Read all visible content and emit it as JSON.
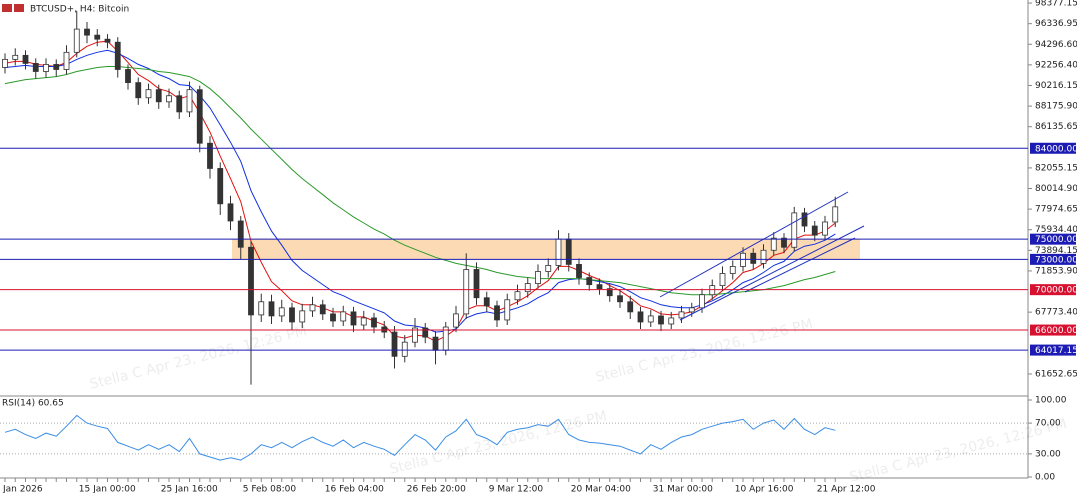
{
  "chart_data": [
    {
      "type": "candlestick",
      "title": "BTCUSD+, H4: Bitcoin",
      "watermark": "Stella C Apr 23, 2026, 12:26 PM",
      "categories": [
        "Jan 2026",
        null,
        null,
        null,
        null,
        null,
        null,
        "15 Jan 00:00",
        null,
        null,
        null,
        null,
        null,
        null,
        null,
        "25 Jan 16:00",
        null,
        null,
        null,
        null,
        null,
        null,
        null,
        "5 Feb 08:00",
        null,
        null,
        null,
        null,
        null,
        null,
        null,
        "16 Feb 04:00",
        null,
        null,
        null,
        null,
        null,
        null,
        null,
        "26 Feb 20:00",
        null,
        null,
        null,
        null,
        null,
        null,
        null,
        "9 Mar 12:00",
        null,
        null,
        null,
        null,
        null,
        null,
        null,
        "20 Mar 04:00",
        null,
        null,
        null,
        null,
        null,
        null,
        null,
        "31 Mar 00:00",
        null,
        null,
        null,
        null,
        null,
        null,
        null,
        "10 Apr 16:00",
        null,
        null,
        null,
        null,
        null,
        null,
        null,
        "21 Apr 12:00",
        null,
        null
      ],
      "open": [
        92000,
        92800,
        93200,
        92400,
        91600,
        92300,
        91800,
        93500,
        95800,
        95200,
        94800,
        94500,
        91800,
        90500,
        89000,
        89800,
        88600,
        89200,
        87600,
        89800,
        84500,
        82000,
        78500,
        76800,
        74200,
        67500,
        68800,
        67400,
        68200,
        66800,
        67900,
        68500,
        67600,
        66900,
        67800,
        66500,
        67200,
        66300,
        65800,
        63400,
        64800,
        66200,
        65300,
        64000,
        66300,
        67600,
        72000,
        69200,
        68400,
        67000,
        69000,
        69800,
        70600,
        71800,
        72400,
        75000,
        72500,
        71200,
        70500,
        70100,
        69400,
        68800,
        67800,
        66800,
        67400,
        66600,
        67200,
        67800,
        68200,
        69500,
        70400,
        71600,
        72300,
        73600,
        72600,
        73900,
        75100,
        74200,
        77600,
        76300,
        75400,
        76700
      ],
      "high": [
        93400,
        93900,
        93700,
        92900,
        92900,
        92800,
        94200,
        97600,
        96500,
        95800,
        95300,
        95000,
        92300,
        91000,
        90400,
        90300,
        89900,
        89700,
        90600,
        90200,
        85200,
        82600,
        79300,
        77300,
        74800,
        69600,
        69500,
        69000,
        68700,
        68600,
        69300,
        69000,
        68200,
        68400,
        68300,
        67900,
        67700,
        66900,
        66400,
        65500,
        67200,
        66700,
        65900,
        66800,
        68400,
        73600,
        72700,
        69800,
        68900,
        69600,
        70500,
        71200,
        72500,
        73100,
        75900,
        75600,
        73100,
        71700,
        71100,
        70600,
        70000,
        69400,
        68300,
        68000,
        67900,
        67800,
        68400,
        68700,
        70100,
        71000,
        72300,
        72900,
        74200,
        74100,
        74500,
        75700,
        75600,
        78200,
        78100,
        76800,
        77300,
        79200
      ],
      "low": [
        91400,
        92200,
        91800,
        90900,
        91000,
        91100,
        91300,
        93000,
        94400,
        94100,
        93900,
        91000,
        89800,
        88300,
        88400,
        87900,
        88000,
        86900,
        87100,
        83600,
        81000,
        77400,
        75900,
        73000,
        60600,
        66800,
        66600,
        66800,
        66000,
        66200,
        67300,
        67000,
        66300,
        66400,
        65800,
        66000,
        65700,
        65200,
        62200,
        62800,
        64300,
        64700,
        62600,
        63500,
        65800,
        67100,
        68500,
        67800,
        66300,
        66500,
        68500,
        69200,
        70100,
        71200,
        71900,
        71800,
        70500,
        69900,
        69500,
        68800,
        68200,
        67100,
        66100,
        66300,
        65900,
        66100,
        66700,
        67300,
        67700,
        69000,
        69900,
        71000,
        71800,
        72000,
        72100,
        73400,
        73600,
        73800,
        75700,
        74800,
        74900,
        76200
      ],
      "close": [
        92800,
        93200,
        92400,
        91600,
        92300,
        91800,
        93500,
        95800,
        95200,
        94800,
        94500,
        91800,
        90500,
        89000,
        89800,
        88600,
        89200,
        87600,
        89800,
        84500,
        82000,
        78500,
        76800,
        74200,
        67500,
        68800,
        67400,
        68200,
        66800,
        67900,
        68500,
        67600,
        66900,
        67800,
        66500,
        67200,
        66300,
        65800,
        63400,
        64800,
        66200,
        65300,
        64000,
        66300,
        67600,
        72000,
        69200,
        68400,
        67000,
        69000,
        69800,
        70600,
        71800,
        72400,
        75000,
        72500,
        71200,
        70500,
        70100,
        69400,
        68800,
        67800,
        66800,
        67400,
        66600,
        67200,
        67800,
        68200,
        69500,
        70400,
        71600,
        72300,
        73600,
        72600,
        73900,
        75100,
        74200,
        77600,
        76300,
        75400,
        76700,
        78200
      ],
      "series": [
        {
          "color": "#e01010",
          "values": [
            92400,
            92600,
            92600,
            92300,
            92200,
            92100,
            92500,
            93400,
            94100,
            94500,
            94600,
            93600,
            92500,
            91300,
            90700,
            89900,
            89600,
            88900,
            89200,
            87500,
            85600,
            83200,
            81000,
            78700,
            74800,
            72700,
            70800,
            69900,
            68900,
            68500,
            68500,
            68200,
            67800,
            67800,
            67300,
            67300,
            66900,
            66500,
            65400,
            65200,
            65500,
            65400,
            64900,
            65400,
            66100,
            68000,
            68400,
            68400,
            67900,
            68300,
            68800,
            69400,
            70200,
            70900,
            72300,
            72300,
            71900,
            71400,
            71000,
            70400,
            69900,
            69200,
            68400,
            68100,
            67600,
            67500,
            67600,
            67800,
            68400,
            69100,
            69900,
            70700,
            71700,
            72000,
            72600,
            73400,
            73700,
            75000,
            75400,
            75400,
            75800,
            76600
          ]
        },
        {
          "color": "#1030e0",
          "values": [
            92000,
            92100,
            92200,
            92100,
            92100,
            92100,
            92300,
            92800,
            93200,
            93500,
            93700,
            93400,
            92900,
            92300,
            91900,
            91300,
            90900,
            90300,
            90200,
            89200,
            88000,
            86300,
            84600,
            82700,
            79800,
            77700,
            75800,
            74400,
            72900,
            71900,
            71200,
            70500,
            69800,
            69400,
            68900,
            68500,
            68100,
            67700,
            66900,
            66500,
            66400,
            66200,
            65800,
            65900,
            66100,
            67200,
            67600,
            67800,
            67600,
            67900,
            68200,
            68600,
            69200,
            69700,
            70700,
            71000,
            71100,
            71000,
            70800,
            70600,
            70300,
            69800,
            69200,
            68900,
            68500,
            68300,
            68200,
            68200,
            68500,
            68900,
            69400,
            70000,
            70700,
            71100,
            71700,
            72400,
            72800,
            73800,
            74300,
            74500,
            74900,
            75500
          ]
        },
        {
          "color": "#2a9a2a",
          "values": [
            90400,
            90600,
            90800,
            90900,
            91000,
            91100,
            91300,
            91600,
            91800,
            92000,
            92100,
            92100,
            92000,
            91900,
            91800,
            91600,
            91500,
            91300,
            91100,
            90600,
            89900,
            89000,
            88000,
            87000,
            85900,
            84900,
            83900,
            82900,
            81900,
            81000,
            80200,
            79400,
            78600,
            77900,
            77200,
            76600,
            76000,
            75500,
            74900,
            74400,
            74000,
            73600,
            73200,
            72900,
            72600,
            72400,
            72200,
            72000,
            71700,
            71500,
            71300,
            71200,
            71100,
            71100,
            71100,
            71100,
            71100,
            71000,
            70900,
            70800,
            70700,
            70500,
            70300,
            70100,
            69900,
            69700,
            69600,
            69500,
            69500,
            69500,
            69600,
            69700,
            69800,
            69900,
            70000,
            70200,
            70400,
            70700,
            71000,
            71200,
            71500,
            71800
          ]
        }
      ],
      "ylim": [
        59570,
        98680
      ],
      "yticks": [
        98377.15,
        96336.95,
        {
          "value": 94296.6,
          "label": "94296.60"
        },
        {
          "value": 92256.4,
          "label": "92256.40"
        },
        90216.15,
        {
          "value": 88175.9,
          "label": "88175.90"
        },
        86135.65,
        82055.15,
        {
          "value": 80014.9,
          "label": "80014.90"
        },
        77974.65,
        {
          "value": 75934.4,
          "label": "75934.40"
        },
        73894.15,
        {
          "value": 71853.9,
          "label": "71853.90"
        },
        {
          "value": 67773.4,
          "label": "67773.40"
        },
        61652.65
      ],
      "levels": [
        {
          "value": 84000,
          "label": "84000.00",
          "color": "#1c1cb4"
        },
        {
          "value": 75000,
          "label": "75000.00",
          "color": "#1c1cb4"
        },
        {
          "value": 73000,
          "label": "73000.00",
          "color": "#1c1cb4"
        },
        {
          "value": 70000,
          "label": "70000.00",
          "color": "#d81030"
        },
        {
          "value": 66000,
          "label": "66000.00",
          "color": "#d81030"
        },
        {
          "value": 64017.15,
          "label": "64017.15",
          "color": "#1c1cb4"
        }
      ]
    },
    {
      "type": "line",
      "title": "RSI(14) 60.65",
      "color": "#3a8ee6",
      "values": [
        58,
        62,
        55,
        50,
        57,
        53,
        66,
        80,
        70,
        66,
        63,
        45,
        40,
        35,
        42,
        36,
        42,
        33,
        50,
        30,
        26,
        22,
        25,
        22,
        30,
        42,
        38,
        45,
        38,
        46,
        52,
        45,
        40,
        48,
        38,
        45,
        40,
        36,
        28,
        42,
        55,
        48,
        35,
        52,
        60,
        75,
        55,
        50,
        42,
        58,
        62,
        64,
        68,
        66,
        75,
        55,
        48,
        45,
        44,
        42,
        40,
        35,
        30,
        42,
        36,
        45,
        52,
        55,
        62,
        66,
        70,
        72,
        75,
        62,
        70,
        74,
        62,
        76,
        62,
        55,
        64,
        60.65
      ],
      "ylim": [
        0,
        100
      ],
      "yticks": [
        {
          "value": 100,
          "label": "100.00"
        },
        {
          "value": 70,
          "label": "70.00"
        },
        {
          "value": 30,
          "label": "30.00"
        },
        {
          "value": 0,
          "label": "0.00"
        }
      ]
    }
  ]
}
